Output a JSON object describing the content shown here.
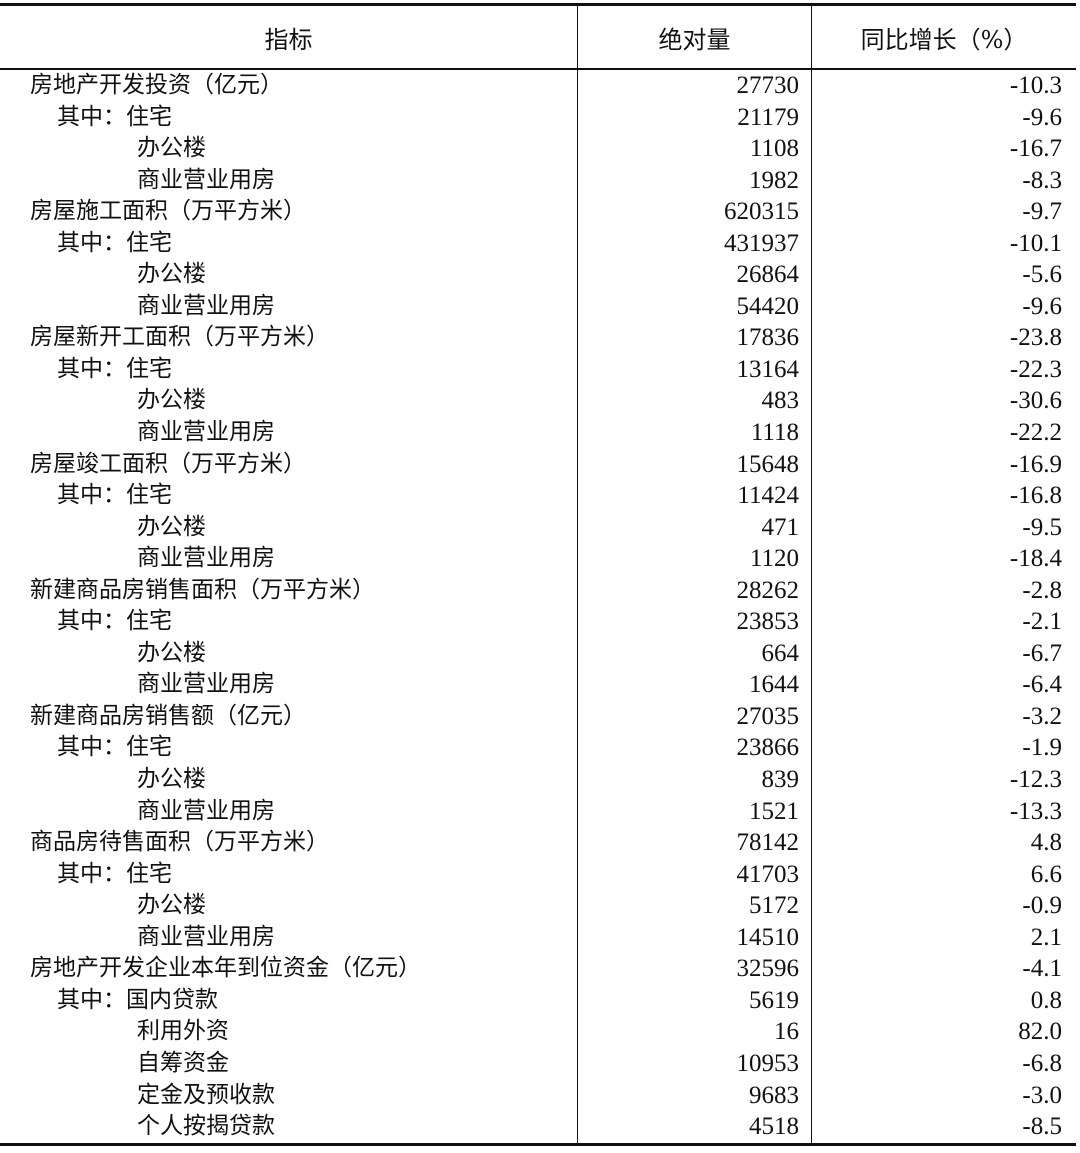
{
  "header": {
    "indicator": "指标",
    "absolute": "绝对量",
    "yoy": "同比增长（%）"
  },
  "rows": [
    {
      "label": "房地产开发投资（亿元）",
      "level": 0,
      "value": "27730",
      "yoy": "-10.3"
    },
    {
      "label": "其中：住宅",
      "level": 1,
      "value": "21179",
      "yoy": "-9.6"
    },
    {
      "label": "办公楼",
      "level": 2,
      "value": "1108",
      "yoy": "-16.7"
    },
    {
      "label": "商业营业用房",
      "level": 2,
      "value": "1982",
      "yoy": "-8.3"
    },
    {
      "label": "房屋施工面积（万平方米）",
      "level": 0,
      "value": "620315",
      "yoy": "-9.7"
    },
    {
      "label": "其中：住宅",
      "level": 1,
      "value": "431937",
      "yoy": "-10.1"
    },
    {
      "label": "办公楼",
      "level": 2,
      "value": "26864",
      "yoy": "-5.6"
    },
    {
      "label": "商业营业用房",
      "level": 2,
      "value": "54420",
      "yoy": "-9.6"
    },
    {
      "label": "房屋新开工面积（万平方米）",
      "level": 0,
      "value": "17836",
      "yoy": "-23.8"
    },
    {
      "label": "其中：住宅",
      "level": 1,
      "value": "13164",
      "yoy": "-22.3"
    },
    {
      "label": "办公楼",
      "level": 2,
      "value": "483",
      "yoy": "-30.6"
    },
    {
      "label": "商业营业用房",
      "level": 2,
      "value": "1118",
      "yoy": "-22.2"
    },
    {
      "label": "房屋竣工面积（万平方米）",
      "level": 0,
      "value": "15648",
      "yoy": "-16.9"
    },
    {
      "label": "其中：住宅",
      "level": 1,
      "value": "11424",
      "yoy": "-16.8"
    },
    {
      "label": "办公楼",
      "level": 2,
      "value": "471",
      "yoy": "-9.5"
    },
    {
      "label": "商业营业用房",
      "level": 2,
      "value": "1120",
      "yoy": "-18.4"
    },
    {
      "label": "新建商品房销售面积（万平方米）",
      "level": 0,
      "value": "28262",
      "yoy": "-2.8"
    },
    {
      "label": "其中：住宅",
      "level": 1,
      "value": "23853",
      "yoy": "-2.1"
    },
    {
      "label": "办公楼",
      "level": 2,
      "value": "664",
      "yoy": "-6.7"
    },
    {
      "label": "商业营业用房",
      "level": 2,
      "value": "1644",
      "yoy": "-6.4"
    },
    {
      "label": "新建商品房销售额（亿元）",
      "level": 0,
      "value": "27035",
      "yoy": "-3.2"
    },
    {
      "label": "其中：住宅",
      "level": 1,
      "value": "23866",
      "yoy": "-1.9"
    },
    {
      "label": "办公楼",
      "level": 2,
      "value": "839",
      "yoy": "-12.3"
    },
    {
      "label": "商业营业用房",
      "level": 2,
      "value": "1521",
      "yoy": "-13.3"
    },
    {
      "label": "商品房待售面积（万平方米）",
      "level": 0,
      "value": "78142",
      "yoy": "4.8"
    },
    {
      "label": "其中：住宅",
      "level": 1,
      "value": "41703",
      "yoy": "6.6"
    },
    {
      "label": "办公楼",
      "level": 2,
      "value": "5172",
      "yoy": "-0.9"
    },
    {
      "label": "商业营业用房",
      "level": 2,
      "value": "14510",
      "yoy": "2.1"
    },
    {
      "label": "房地产开发企业本年到位资金（亿元）",
      "level": 0,
      "value": "32596",
      "yoy": "-4.1"
    },
    {
      "label": "其中：国内贷款",
      "level": 1,
      "value": "5619",
      "yoy": "0.8"
    },
    {
      "label": "利用外资",
      "level": 2,
      "value": "16",
      "yoy": "82.0"
    },
    {
      "label": "自筹资金",
      "level": 2,
      "value": "10953",
      "yoy": "-6.8"
    },
    {
      "label": "定金及预收款",
      "level": 2,
      "value": "9683",
      "yoy": "-3.0"
    },
    {
      "label": "个人按揭贷款",
      "level": 2,
      "value": "4518",
      "yoy": "-8.5"
    }
  ]
}
